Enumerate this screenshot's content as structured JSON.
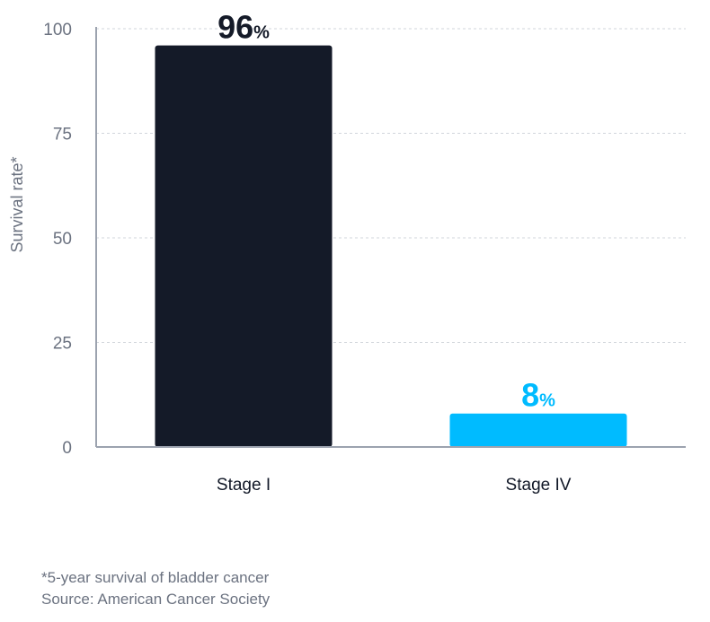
{
  "chart_data": {
    "type": "bar",
    "categories": [
      "Stage I",
      "Stage IV"
    ],
    "values": [
      96,
      8
    ],
    "value_labels": [
      {
        "number": "96",
        "unit": "%"
      },
      {
        "number": "8",
        "unit": "%"
      }
    ],
    "bar_colors": [
      "#141a28",
      "#00bbff"
    ],
    "ylabel": "Survival rate*",
    "ylim": [
      0,
      100
    ],
    "yticks": [
      0,
      25,
      50,
      75,
      100
    ],
    "grid": true
  },
  "footnotes": {
    "note": "*5-year survival of bladder cancer",
    "source": "Source: American Cancer Society"
  }
}
